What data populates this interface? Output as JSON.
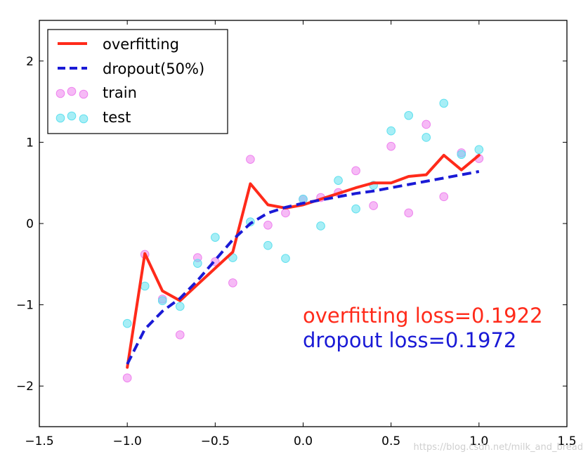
{
  "chart_data": {
    "type": "line",
    "xlim": [
      -1.5,
      1.5
    ],
    "ylim": [
      -2.5,
      2.5
    ],
    "grid": false,
    "legend_position": "top-left",
    "x_ticks": [
      -1.5,
      -1.0,
      -0.5,
      0.0,
      0.5,
      1.0,
      1.5
    ],
    "x_tick_labels": [
      "−1.5",
      "−1.0",
      "−0.5",
      "0.0",
      "0.5",
      "1.0",
      "1.5"
    ],
    "y_ticks": [
      -2,
      -1,
      0,
      1,
      2
    ],
    "y_tick_labels": [
      "−2",
      "−1",
      "0",
      "1",
      "2"
    ],
    "series": [
      {
        "name": "overfitting",
        "kind": "line",
        "style": "solid",
        "color": "#ff2a1a",
        "x": [
          -1.0,
          -0.9,
          -0.8,
          -0.7,
          -0.6,
          -0.5,
          -0.4,
          -0.3,
          -0.2,
          -0.1,
          0.0,
          0.1,
          0.2,
          0.3,
          0.4,
          0.5,
          0.6,
          0.7,
          0.8,
          0.9,
          1.0
        ],
        "y": [
          -1.77,
          -0.37,
          -0.83,
          -0.95,
          -0.75,
          -0.55,
          -0.35,
          0.49,
          0.23,
          0.19,
          0.23,
          0.3,
          0.37,
          0.44,
          0.5,
          0.5,
          0.58,
          0.6,
          0.84,
          0.66,
          0.84
        ]
      },
      {
        "name": "dropout(50%)",
        "kind": "line",
        "style": "dashed",
        "color": "#1a1ad6",
        "x": [
          -1.0,
          -0.9,
          -0.8,
          -0.7,
          -0.6,
          -0.5,
          -0.4,
          -0.3,
          -0.2,
          -0.1,
          0.0,
          0.1,
          0.2,
          0.3,
          0.4,
          0.5,
          0.6,
          0.7,
          0.8,
          0.9,
          1.0
        ],
        "y": [
          -1.73,
          -1.3,
          -1.08,
          -0.92,
          -0.7,
          -0.45,
          -0.2,
          0.0,
          0.13,
          0.2,
          0.25,
          0.29,
          0.33,
          0.37,
          0.4,
          0.44,
          0.48,
          0.52,
          0.56,
          0.6,
          0.64
        ]
      },
      {
        "name": "train",
        "kind": "scatter",
        "color": "#ee82ee",
        "x": [
          -1.0,
          -0.9,
          -0.8,
          -0.7,
          -0.6,
          -0.5,
          -0.4,
          -0.3,
          -0.2,
          -0.1,
          0.0,
          0.1,
          0.2,
          0.3,
          0.4,
          0.5,
          0.6,
          0.7,
          0.8,
          0.9,
          1.0
        ],
        "y": [
          -1.9,
          -0.38,
          -0.93,
          -1.37,
          -0.42,
          -0.47,
          -0.73,
          0.79,
          -0.02,
          0.13,
          0.3,
          0.32,
          0.38,
          0.65,
          0.22,
          0.95,
          0.13,
          1.22,
          0.33,
          0.87,
          0.8
        ]
      },
      {
        "name": "test",
        "kind": "scatter",
        "color": "#5fe0ee",
        "x": [
          -1.0,
          -0.9,
          -0.8,
          -0.7,
          -0.6,
          -0.5,
          -0.4,
          -0.3,
          -0.2,
          -0.1,
          0.0,
          0.1,
          0.2,
          0.3,
          0.4,
          0.5,
          0.6,
          0.7,
          0.8,
          0.9,
          1.0
        ],
        "y": [
          -1.23,
          -0.77,
          -0.95,
          -1.02,
          -0.49,
          -0.17,
          -0.42,
          0.02,
          -0.27,
          -0.43,
          0.3,
          -0.03,
          0.53,
          0.18,
          0.47,
          1.14,
          1.33,
          1.06,
          1.48,
          0.85,
          0.91
        ]
      }
    ],
    "annotations": [
      {
        "id": "overfit-loss",
        "text": "overfitting loss=0.1922",
        "color": "#ff2a1a"
      },
      {
        "id": "dropout-loss",
        "text": "dropout loss=0.1972",
        "color": "#1a1ad6"
      }
    ]
  },
  "watermark": "https://blog.csdn.net/milk_and_bread"
}
